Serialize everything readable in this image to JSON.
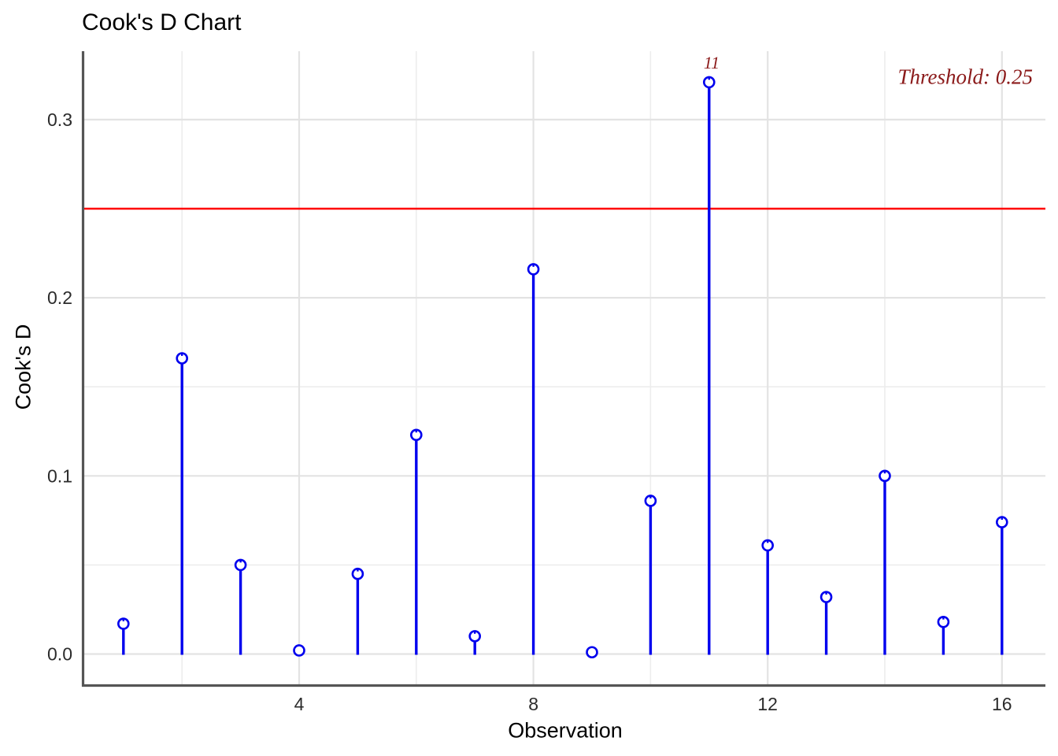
{
  "title": "Cook's D Chart",
  "axes": {
    "x": {
      "label": "Observation",
      "tick_labels": [
        "4",
        "8",
        "12",
        "16"
      ],
      "tick_values": [
        4,
        8,
        12,
        16
      ]
    },
    "y": {
      "label": "Cook's D",
      "tick_labels": [
        "0.0",
        "0.1",
        "0.2",
        "0.3"
      ],
      "tick_values": [
        0,
        0.1,
        0.2,
        0.3
      ]
    }
  },
  "threshold": {
    "value": 0.25,
    "label": "Threshold: 0.25"
  },
  "annotation": {
    "label": "11",
    "observation": 11
  },
  "colors": {
    "stem": "#0000EE",
    "marker_stroke": "#0000EE",
    "marker_fill": "#ffffff",
    "threshold_line": "#FF0000",
    "annotation_text": "#8B1A1A",
    "axis_line": "#555555",
    "grid_major": "#E3E3E3",
    "grid_minor": "#EDEDED",
    "tick_text": "#2B2B2B",
    "title_text": "#000000"
  },
  "chart_data": {
    "type": "stem",
    "title": "Cook's D Chart",
    "xlabel": "Observation",
    "ylabel": "Cook's D",
    "x": [
      1,
      2,
      3,
      4,
      5,
      6,
      7,
      8,
      9,
      10,
      11,
      12,
      13,
      14,
      15,
      16
    ],
    "values": [
      0.017,
      0.166,
      0.05,
      0.002,
      0.045,
      0.123,
      0.01,
      0.216,
      0.001,
      0.086,
      0.321,
      0.061,
      0.032,
      0.1,
      0.018,
      0.074
    ],
    "threshold": 0.25,
    "threshold_label": "Threshold: 0.25",
    "annotated_max_point": {
      "x": 11,
      "y": 0.321,
      "label": "11"
    },
    "x_ticks": [
      4,
      8,
      12,
      16
    ],
    "y_ticks": [
      0,
      0.1,
      0.2,
      0.3
    ],
    "xlim": [
      0.33,
      17.0
    ],
    "ylim": [
      -0.018,
      0.338
    ],
    "grid": "major horizontal every 0.1, minor every 0.05; vertical gridlines at even observations",
    "legend": "none"
  }
}
